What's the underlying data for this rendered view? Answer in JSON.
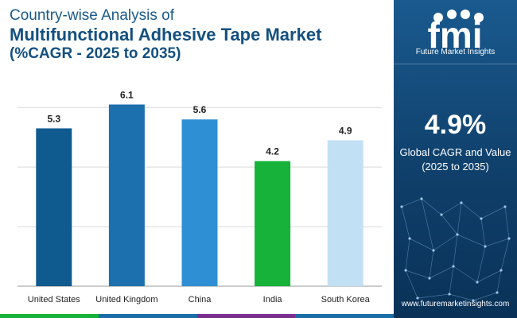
{
  "header": {
    "title_line1": "Country-wise Analysis of",
    "title_line2": "Multifunctional Adhesive Tape Market",
    "title_line3": "(%CAGR - 2025 to 2035)"
  },
  "chart_data": {
    "type": "bar",
    "categories": [
      "United States",
      "United Kingdom",
      "China",
      "India",
      "South Korea"
    ],
    "values": [
      5.3,
      6.1,
      5.6,
      4.2,
      4.9
    ],
    "colors": [
      "#0f5a8e",
      "#1c70ad",
      "#2f8fd4",
      "#16b23a",
      "#c2e0f4"
    ],
    "title": "",
    "xlabel": "",
    "ylabel": "",
    "ylim": [
      0,
      6.3
    ],
    "grid": true,
    "legend": "none"
  },
  "sidebar": {
    "logo_caption": "Future Market Insights",
    "stat_value": "4.9%",
    "stat_label_line1": "Global CAGR and Value",
    "stat_label_line2": "(2025 to 2035)",
    "website": "www.futuremarketinsights.com",
    "logo_letters": "fmi"
  },
  "stripe_colors": [
    "#16b23a",
    "#1a6ea8",
    "#7a2f8e",
    "#1a6ea8"
  ]
}
